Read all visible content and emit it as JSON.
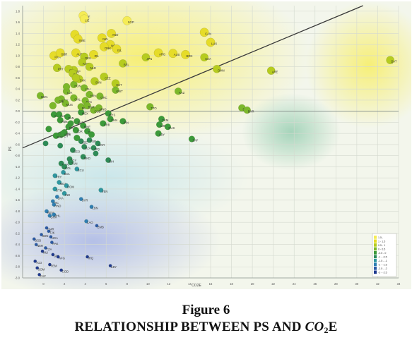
{
  "caption": {
    "figure_number": "Figure 6",
    "title_prefix": "RELATIONSHIP BETWEEN PS AND ",
    "title_math": "CO",
    "title_sub": "2",
    "title_suffix": "E"
  },
  "chart_data": {
    "type": "scatter",
    "title": "",
    "xlabel": "CO2E",
    "ylabel": "PS",
    "xlim": [
      -2,
      34
    ],
    "ylim": [
      -3.0,
      1.9
    ],
    "x_ticks": [
      0,
      2,
      4,
      6,
      8,
      10,
      12,
      14,
      16,
      18,
      20,
      22,
      24,
      26,
      28,
      30,
      32,
      34
    ],
    "y_ticks": [
      1.8,
      1.6,
      1.4,
      1.2,
      1.0,
      0.8,
      0.6,
      0.4,
      0.2,
      0.0,
      -0.2,
      -0.4,
      -0.6,
      -0.8,
      -1.0,
      -1.2,
      -1.4,
      -1.6,
      -1.8,
      -2.0,
      -2.2,
      -2.4,
      -2.6,
      -2.8,
      -3.0
    ],
    "grid": true,
    "trend_line": {
      "x": [
        -2,
        30.6
      ],
      "y": [
        -0.66,
        1.9
      ]
    },
    "color_scale": {
      "placement": "bottom-right",
      "bins": [
        "-3 - -2.5",
        "-2.5 - -2",
        "-2 - -1.5",
        "-1.5 - -1",
        "-1 - -0.5",
        "-0.5 - 0",
        "0 - 0.5",
        "0.5 - 1",
        "1 - 1.5",
        "1.5 -"
      ],
      "colors": [
        "#1f3a8f",
        "#2b5aa6",
        "#2f7fb3",
        "#2f97a0",
        "#2e8b57",
        "#3c9a3a",
        "#7cb82a",
        "#b6cc1f",
        "#e6dc28",
        "#f5ec55"
      ]
    },
    "points": [
      {
        "label": "CHE",
        "x": 3.8,
        "y": 1.72
      },
      {
        "label": "LIE",
        "x": 3.9,
        "y": 1.66
      },
      {
        "label": "SGP",
        "x": 8.0,
        "y": 1.63
      },
      {
        "label": "AND",
        "x": 6.5,
        "y": 1.4
      },
      {
        "label": "FIN",
        "x": 3.0,
        "y": 1.38
      },
      {
        "label": "SWE",
        "x": 3.3,
        "y": 1.3
      },
      {
        "label": "CAN",
        "x": 15.4,
        "y": 1.42
      },
      {
        "label": "LUX",
        "x": 16.0,
        "y": 1.24
      },
      {
        "label": "NZL",
        "x": 5.6,
        "y": 1.32
      },
      {
        "label": "NOR",
        "x": 6.4,
        "y": 1.2
      },
      {
        "label": "DNK",
        "x": 5.8,
        "y": 1.16
      },
      {
        "label": "ISL",
        "x": 7.0,
        "y": 1.12
      },
      {
        "label": "IRL",
        "x": 4.8,
        "y": 1.02
      },
      {
        "label": "AUS",
        "x": 12.4,
        "y": 1.04
      },
      {
        "label": "BRN",
        "x": 13.6,
        "y": 1.02
      },
      {
        "label": "USA",
        "x": 15.4,
        "y": 0.97
      },
      {
        "label": "ARG",
        "x": 11.0,
        "y": 1.05
      },
      {
        "label": "JPN",
        "x": 9.8,
        "y": 0.97
      },
      {
        "label": "AUT",
        "x": 3.1,
        "y": 1.05
      },
      {
        "label": "FRA",
        "x": 1.0,
        "y": 1.0
      },
      {
        "label": "DEU",
        "x": 3.9,
        "y": 0.98
      },
      {
        "label": "GBR",
        "x": 1.6,
        "y": 1.05
      },
      {
        "label": "BEL",
        "x": 7.6,
        "y": 0.86
      },
      {
        "label": "KOR",
        "x": 3.7,
        "y": 0.88
      },
      {
        "label": "NLD",
        "x": 4.4,
        "y": 0.8
      },
      {
        "label": "OMN",
        "x": 16.6,
        "y": 0.76
      },
      {
        "label": "ARE",
        "x": 21.8,
        "y": 0.73
      },
      {
        "label": "QAT",
        "x": 33.2,
        "y": 0.92
      },
      {
        "label": "ESP",
        "x": 2.9,
        "y": 0.74
      },
      {
        "label": "ITA",
        "x": 2.4,
        "y": 0.76
      },
      {
        "label": "PRT",
        "x": 1.3,
        "y": 0.78
      },
      {
        "label": "POL",
        "x": 2.8,
        "y": 0.68
      },
      {
        "label": "CZE",
        "x": 5.8,
        "y": 0.62
      },
      {
        "label": "SVK",
        "x": 3.4,
        "y": 0.58
      },
      {
        "label": "SVN",
        "x": 4.9,
        "y": 0.54
      },
      {
        "label": "EST",
        "x": 6.9,
        "y": 0.5
      },
      {
        "label": "HUN",
        "x": 2.9,
        "y": 0.48
      },
      {
        "label": "LTU",
        "x": 3.9,
        "y": 0.42
      },
      {
        "label": "LVA",
        "x": 2.2,
        "y": 0.36
      },
      {
        "label": "KWT",
        "x": 6.9,
        "y": 0.38
      },
      {
        "label": "HRV",
        "x": 4.4,
        "y": 0.3
      },
      {
        "label": "GRC",
        "x": 5.4,
        "y": 0.27
      },
      {
        "label": "CHL",
        "x": 2.9,
        "y": 0.24
      },
      {
        "label": "URY",
        "x": 1.7,
        "y": 0.22
      },
      {
        "label": "SYC",
        "x": 4.0,
        "y": 0.19
      },
      {
        "label": "MUS",
        "x": 2.1,
        "y": 0.14
      },
      {
        "label": "BWA",
        "x": -0.3,
        "y": 0.28
      },
      {
        "label": "CRI",
        "x": 1.4,
        "y": 0.2
      },
      {
        "label": "KAZ",
        "x": 12.9,
        "y": 0.36
      },
      {
        "label": "TTO",
        "x": 10.2,
        "y": 0.08
      },
      {
        "label": "SAU",
        "x": 19.0,
        "y": 0.06
      },
      {
        "label": "BHR",
        "x": 19.5,
        "y": 0.02
      },
      {
        "label": "MNG",
        "x": 5.3,
        "y": 0.06
      },
      {
        "label": "CUB",
        "x": 4.8,
        "y": 0.02
      },
      {
        "label": "MEX",
        "x": 3.6,
        "y": -0.02
      },
      {
        "label": "ROU",
        "x": 3.6,
        "y": 0.08
      },
      {
        "label": "BGR",
        "x": 4.2,
        "y": 0.1
      },
      {
        "label": "MYS",
        "x": 6.2,
        "y": -0.04
      },
      {
        "label": "CHN",
        "x": 6.4,
        "y": -0.14
      },
      {
        "label": "KGZ",
        "x": 1.0,
        "y": -0.06
      },
      {
        "label": "ALB",
        "x": 1.5,
        "y": -0.06
      },
      {
        "label": "VNM",
        "x": 1.6,
        "y": -0.16
      },
      {
        "label": "PAN",
        "x": 2.3,
        "y": -0.1
      },
      {
        "label": "SRB",
        "x": 5.7,
        "y": -0.22
      },
      {
        "label": "SUR",
        "x": 3.2,
        "y": -0.18
      },
      {
        "label": "MNE",
        "x": 3.8,
        "y": -0.26
      },
      {
        "label": "BRA",
        "x": 2.4,
        "y": -0.28
      },
      {
        "label": "THA",
        "x": 4.2,
        "y": -0.36
      },
      {
        "label": "JOR",
        "x": 3.1,
        "y": -0.34
      },
      {
        "label": "IDN",
        "x": 2.0,
        "y": -0.38
      },
      {
        "label": "PER",
        "x": 1.7,
        "y": -0.42
      },
      {
        "label": "TKM",
        "x": 11.3,
        "y": -0.14
      },
      {
        "label": "UZB",
        "x": 11.1,
        "y": -0.24
      },
      {
        "label": "LBY",
        "x": 11.0,
        "y": -0.4
      },
      {
        "label": "IRN",
        "x": 7.6,
        "y": -0.18
      },
      {
        "label": "RUS",
        "x": 11.9,
        "y": -0.28
      },
      {
        "label": "ZAF",
        "x": 14.2,
        "y": -0.5
      },
      {
        "label": "TUR",
        "x": 4.4,
        "y": -0.52
      },
      {
        "label": "AZE",
        "x": 3.6,
        "y": -0.54
      },
      {
        "label": "ARM",
        "x": 1.9,
        "y": -0.4
      },
      {
        "label": "SLV",
        "x": 1.2,
        "y": -0.44
      },
      {
        "label": "IRQ",
        "x": 4.8,
        "y": -0.66
      },
      {
        "label": "DZA",
        "x": 3.9,
        "y": -0.64
      },
      {
        "label": "UKR",
        "x": 5.2,
        "y": -0.58
      },
      {
        "label": "GEO",
        "x": 2.8,
        "y": -0.7
      },
      {
        "label": "BIH",
        "x": 6.2,
        "y": -0.88
      },
      {
        "label": "MKD",
        "x": 3.8,
        "y": -0.82
      },
      {
        "label": "EGY",
        "x": 2.5,
        "y": -0.86
      },
      {
        "label": "TUN",
        "x": 2.6,
        "y": -0.92
      },
      {
        "label": "MAR",
        "x": 1.7,
        "y": -0.94
      },
      {
        "label": "COL",
        "x": 2.0,
        "y": -1.0
      },
      {
        "label": "ECU",
        "x": 3.2,
        "y": -1.04
      },
      {
        "label": "BOL",
        "x": 1.9,
        "y": -1.1
      },
      {
        "label": "PRY",
        "x": 1.1,
        "y": -1.16
      },
      {
        "label": "MDA",
        "x": 1.5,
        "y": -1.28
      },
      {
        "label": "DOM",
        "x": 2.2,
        "y": -1.34
      },
      {
        "label": "GTM",
        "x": 1.1,
        "y": -1.4
      },
      {
        "label": "IND",
        "x": 2.0,
        "y": -1.48
      },
      {
        "label": "LKA",
        "x": 1.3,
        "y": -1.54
      },
      {
        "label": "VEN",
        "x": 5.5,
        "y": -1.42
      },
      {
        "label": "SYR",
        "x": 3.6,
        "y": -1.58
      },
      {
        "label": "NIC",
        "x": 0.9,
        "y": -1.62
      },
      {
        "label": "HND",
        "x": 1.0,
        "y": -1.68
      },
      {
        "label": "LBN",
        "x": 4.6,
        "y": -1.72
      },
      {
        "label": "KEN",
        "x": 0.3,
        "y": -1.8
      },
      {
        "label": "PHL",
        "x": 1.0,
        "y": -1.86
      },
      {
        "label": "GHA",
        "x": 0.6,
        "y": -1.88
      },
      {
        "label": "LAO",
        "x": 4.1,
        "y": -1.98
      },
      {
        "label": "ZMB",
        "x": 5.1,
        "y": -2.06
      },
      {
        "label": "CMR",
        "x": 0.3,
        "y": -2.1
      },
      {
        "label": "TJK",
        "x": 0.5,
        "y": -2.16
      },
      {
        "label": "SDN",
        "x": -0.2,
        "y": -2.22
      },
      {
        "label": "NGA",
        "x": 0.7,
        "y": -2.26
      },
      {
        "label": "BGD",
        "x": -0.9,
        "y": -2.3
      },
      {
        "label": "PAK",
        "x": 0.8,
        "y": -2.36
      },
      {
        "label": "NER",
        "x": -0.7,
        "y": -2.4
      },
      {
        "label": "TZA",
        "x": 0.2,
        "y": -2.46
      },
      {
        "label": "MLI",
        "x": -0.1,
        "y": -2.52
      },
      {
        "label": "GIN",
        "x": 0.9,
        "y": -2.58
      },
      {
        "label": "AFG",
        "x": 1.4,
        "y": -2.62
      },
      {
        "label": "TCD",
        "x": -0.8,
        "y": -2.7
      },
      {
        "label": "YEM",
        "x": 0.6,
        "y": -2.76
      },
      {
        "label": "SOM",
        "x": -0.6,
        "y": -2.82
      },
      {
        "label": "COD",
        "x": 1.7,
        "y": -2.86
      },
      {
        "label": "IRQ",
        "x": 4.2,
        "y": -2.62
      },
      {
        "label": "LBY",
        "x": 6.4,
        "y": -2.78
      },
      {
        "label": "CAF",
        "x": -0.4,
        "y": -2.94
      },
      {
        "label": "",
        "x": 0.2,
        "y": -0.58
      },
      {
        "label": "",
        "x": 1.6,
        "y": -0.62
      },
      {
        "label": "",
        "x": 2.2,
        "y": 0.44
      },
      {
        "label": "",
        "x": 3.1,
        "y": 0.6
      },
      {
        "label": "",
        "x": 0.9,
        "y": 0.1
      },
      {
        "label": "",
        "x": 2.6,
        "y": -0.22
      },
      {
        "label": "",
        "x": 4.6,
        "y": -0.42
      },
      {
        "label": "",
        "x": 5.0,
        "y": -0.76
      },
      {
        "label": "",
        "x": 3.2,
        "y": -0.48
      },
      {
        "label": "",
        "x": 0.5,
        "y": -0.32
      }
    ]
  }
}
